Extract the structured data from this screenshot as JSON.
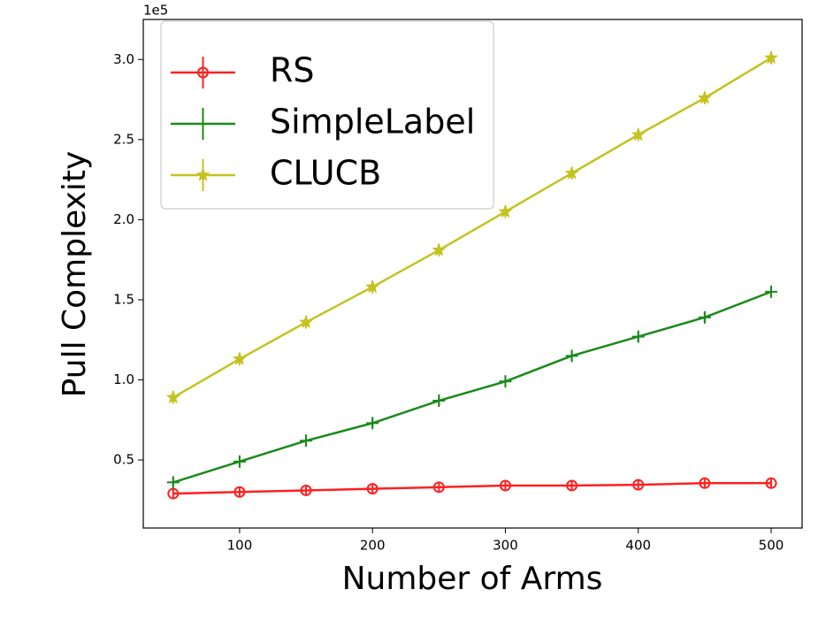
{
  "chart_data": {
    "type": "line",
    "x_label": "Number of Arms",
    "y_label": "Pull Complexity",
    "y_offset_label": "1e5",
    "x": [
      50,
      100,
      150,
      200,
      250,
      300,
      350,
      400,
      450,
      500
    ],
    "series": [
      {
        "name": "RS",
        "color": "#ff2020",
        "marker": "circle",
        "values": [
          0.29,
          0.3,
          0.31,
          0.32,
          0.33,
          0.34,
          0.34,
          0.345,
          0.355,
          0.355
        ],
        "errors": [
          0.03,
          0.03,
          0.03,
          0.03,
          0.03,
          0.03,
          0.03,
          0.03,
          0.03,
          0.03
        ]
      },
      {
        "name": "SimpleLabel",
        "color": "#1a8a1a",
        "marker": "plus",
        "values": [
          0.36,
          0.49,
          0.62,
          0.73,
          0.87,
          0.99,
          1.15,
          1.27,
          1.39,
          1.55
        ],
        "errors": [
          0.03,
          0.03,
          0.03,
          0.03,
          0.03,
          0.03,
          0.03,
          0.03,
          0.03,
          0.03
        ]
      },
      {
        "name": "CLUCB",
        "color": "#c4c21e",
        "marker": "star",
        "values": [
          0.89,
          1.13,
          1.36,
          1.58,
          1.81,
          2.05,
          2.29,
          2.53,
          2.76,
          3.01
        ],
        "errors": [
          0.04,
          0.04,
          0.04,
          0.04,
          0.04,
          0.04,
          0.04,
          0.04,
          0.04,
          0.04
        ]
      }
    ],
    "xlim": [
      27.5,
      523.3
    ],
    "xticks": [
      100,
      200,
      300,
      400,
      500
    ],
    "ylim": [
      0.075,
      3.25
    ],
    "yticks": [
      0.5,
      {
        "value": 1.0,
        "label": "1.0"
      },
      1.5,
      {
        "value": 2.0,
        "label": "2.0"
      },
      2.5,
      {
        "value": 3.0,
        "label": "3.0"
      }
    ],
    "grid": false,
    "legend": "upper left"
  }
}
